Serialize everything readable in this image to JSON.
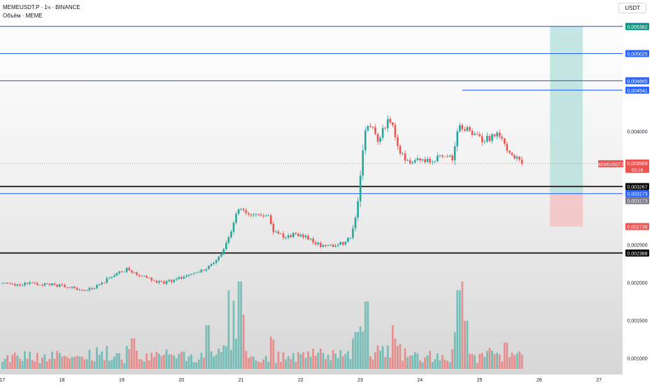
{
  "header": {
    "symbol_line": "MEMEUSDT.P · 1ч · BINANCE",
    "volume_line": "Объём · MEME",
    "currency_button": "USDT"
  },
  "price_tag": {
    "symbol": "MEMEUSDT.P",
    "price": "0,003569",
    "countdown": "53:16"
  },
  "colors": {
    "up": "#26a69a",
    "down": "#ef5350",
    "level_blue": "#2962ff",
    "level_black": "#000000",
    "target_zone": "#b2dfdb",
    "stop_zone": "#f4c2c2",
    "background_top": "#ffffff",
    "background_bottom": "#d8d8d8"
  },
  "chart_data": {
    "type": "candlestick",
    "x_ticks": [
      "17",
      "18",
      "19",
      "20",
      "21",
      "22",
      "23",
      "24",
      "25",
      "26",
      "27"
    ],
    "y_ticks": [
      "0,004000",
      "0,002500",
      "0,002000",
      "0,001500",
      "0,001000"
    ],
    "y_tick_values": [
      0.004,
      0.0025,
      0.002,
      0.0015,
      0.001
    ],
    "ylim": [
      0.000782,
      0.005733
    ],
    "xlim": [
      16.96,
      27.89
    ],
    "last_x": 25.72,
    "last_price": 0.003569,
    "horizontal_levels": [
      {
        "value": 0.005384,
        "label": "0,005384",
        "style": "blue",
        "x_start": 16.96
      },
      {
        "value": 0.005025,
        "label": "0,005025",
        "style": "blue",
        "x_start": 16.96
      },
      {
        "value": 0.004665,
        "label": "0,004665",
        "style": "blue",
        "x_start": 16.96
      },
      {
        "value": 0.004541,
        "label": "0,004541",
        "style": "blue",
        "x_start": 24.71
      },
      {
        "value": 0.003267,
        "label": "0,003267",
        "style": "black",
        "x_start": 16.96
      },
      {
        "value": 0.003173,
        "label": "0,003173",
        "style": "blue",
        "x_start": 16.96
      },
      {
        "value": 0.002388,
        "label": "0,002388",
        "style": "black",
        "x_start": 16.96
      }
    ],
    "position_tool": {
      "x_from": 26.18,
      "x_to": 26.73,
      "entry": 0.003173,
      "target": 0.005382,
      "stop": 0.002738,
      "entry_label": "0,003173",
      "target_label": "0,005382",
      "stop_label": "0,002738"
    },
    "price_anchors": [
      [
        16.96,
        0.001985
      ],
      [
        17.2,
        0.00197
      ],
      [
        17.5,
        0.00198
      ],
      [
        17.7,
        0.001975
      ],
      [
        18.0,
        0.001955
      ],
      [
        18.2,
        0.00192
      ],
      [
        18.4,
        0.001895
      ],
      [
        18.6,
        0.00195
      ],
      [
        18.75,
        0.00204
      ],
      [
        18.95,
        0.00213
      ],
      [
        19.1,
        0.002185
      ],
      [
        19.3,
        0.00209
      ],
      [
        19.5,
        0.00203
      ],
      [
        19.7,
        0.001995
      ],
      [
        19.9,
        0.00204
      ],
      [
        20.15,
        0.00211
      ],
      [
        20.35,
        0.00215
      ],
      [
        20.55,
        0.00225
      ],
      [
        20.7,
        0.0024
      ],
      [
        20.8,
        0.0026
      ],
      [
        20.88,
        0.00282
      ],
      [
        20.97,
        0.00298
      ],
      [
        21.1,
        0.002905
      ],
      [
        21.3,
        0.00292
      ],
      [
        21.45,
        0.002885
      ],
      [
        21.55,
        0.00266
      ],
      [
        21.7,
        0.002615
      ],
      [
        21.9,
        0.002625
      ],
      [
        22.05,
        0.002615
      ],
      [
        22.25,
        0.00251
      ],
      [
        22.4,
        0.002475
      ],
      [
        22.6,
        0.002485
      ],
      [
        22.75,
        0.00254
      ],
      [
        22.85,
        0.00262
      ],
      [
        22.95,
        0.00296
      ],
      [
        23.02,
        0.00354
      ],
      [
        23.08,
        0.00403
      ],
      [
        23.2,
        0.00405
      ],
      [
        23.3,
        0.003865
      ],
      [
        23.45,
        0.00413
      ],
      [
        23.55,
        0.00405
      ],
      [
        23.65,
        0.003755
      ],
      [
        23.8,
        0.003575
      ],
      [
        24.0,
        0.003615
      ],
      [
        24.2,
        0.00361
      ],
      [
        24.4,
        0.00371
      ],
      [
        24.55,
        0.00365
      ],
      [
        24.66,
        0.0041
      ],
      [
        24.8,
        0.00401
      ],
      [
        25.0,
        0.00389
      ],
      [
        25.15,
        0.003905
      ],
      [
        25.3,
        0.003965
      ],
      [
        25.45,
        0.00378
      ],
      [
        25.6,
        0.00366
      ],
      [
        25.72,
        0.003569
      ]
    ],
    "volume_bars": [
      [
        19.2,
        0.35
      ],
      [
        20.45,
        0.5
      ],
      [
        20.79,
        0.9
      ],
      [
        20.88,
        0.78
      ],
      [
        20.97,
        1.0
      ],
      [
        21.05,
        0.62
      ],
      [
        23.08,
        0.7
      ],
      [
        23.12,
        0.77
      ],
      [
        23.55,
        0.5
      ],
      [
        24.65,
        0.9
      ],
      [
        24.71,
        1.0
      ],
      [
        24.78,
        0.55
      ],
      [
        25.45,
        0.3
      ]
    ]
  }
}
